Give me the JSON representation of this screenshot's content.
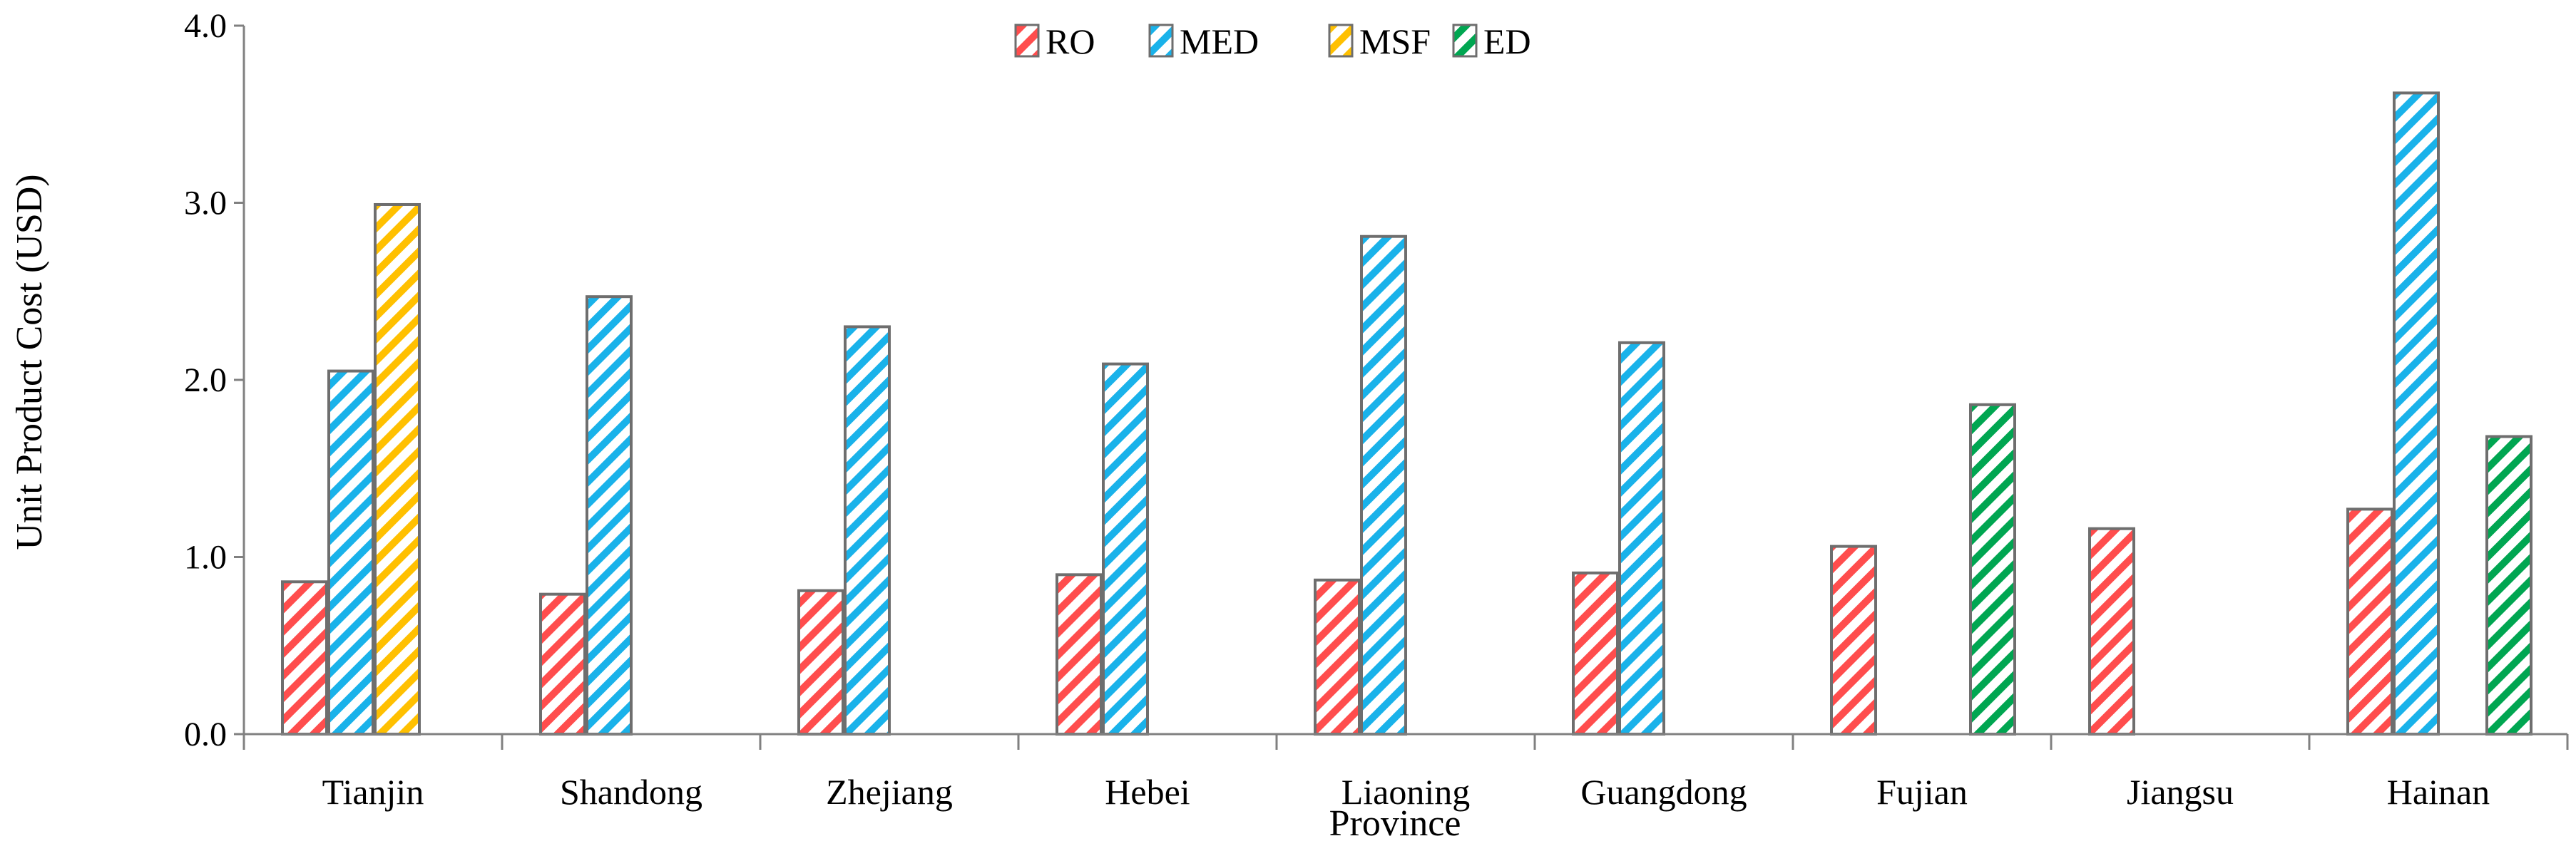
{
  "chart_data": {
    "type": "bar",
    "title": "",
    "xlabel": "Province",
    "ylabel": "Unit Product Cost (USD)",
    "ylim": [
      0,
      4
    ],
    "yticks": [
      "0.0",
      "1.0",
      "2.0",
      "3.0",
      "4.0"
    ],
    "ytick_values": [
      0,
      1,
      2,
      3,
      4
    ],
    "grid": false,
    "legend_position": "top-center",
    "categories": [
      "Tianjin",
      "Shandong",
      "Zhejiang",
      "Hebei",
      "Liaoning",
      "Guangdong",
      "Fujian",
      "Jiangsu",
      "Hainan"
    ],
    "series": [
      {
        "name": "RO",
        "color": "#ff4d4d",
        "values": [
          0.86,
          0.79,
          0.81,
          0.9,
          0.87,
          0.91,
          1.06,
          1.16,
          1.27
        ]
      },
      {
        "name": "MED",
        "color": "#19b2ea",
        "values": [
          2.05,
          2.47,
          2.3,
          2.09,
          2.81,
          2.21,
          null,
          null,
          3.62
        ]
      },
      {
        "name": "MSF",
        "color": "#ffc000",
        "values": [
          2.99,
          null,
          null,
          null,
          null,
          null,
          null,
          null,
          null
        ]
      },
      {
        "name": "ED",
        "color": "#00a651",
        "values": [
          null,
          null,
          null,
          null,
          null,
          null,
          1.86,
          null,
          1.68
        ]
      }
    ]
  }
}
